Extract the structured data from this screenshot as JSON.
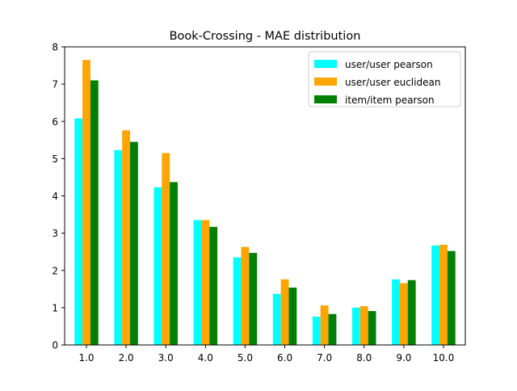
{
  "chart_data": {
    "type": "bar",
    "title": "Book-Crossing - MAE distribution",
    "xlabel": "",
    "ylabel": "",
    "categories": [
      "1.0",
      "2.0",
      "3.0",
      "4.0",
      "5.0",
      "6.0",
      "7.0",
      "8.0",
      "9.0",
      "10.0"
    ],
    "ylim": [
      0,
      8
    ],
    "yticks": [
      "0",
      "1",
      "2",
      "3",
      "4",
      "5",
      "6",
      "7",
      "8"
    ],
    "grid": false,
    "legend_position": "top-right",
    "series": [
      {
        "name": "user/user pearson",
        "color": "#00ffff",
        "values": [
          6.08,
          5.23,
          4.23,
          3.35,
          2.35,
          1.37,
          0.76,
          1.0,
          1.76,
          2.67
        ]
      },
      {
        "name": "user/user euclidean",
        "color": "#ffa500",
        "values": [
          7.65,
          5.76,
          5.15,
          3.35,
          2.63,
          1.76,
          1.06,
          1.04,
          1.66,
          2.69
        ]
      },
      {
        "name": "item/item pearson",
        "color": "#008000",
        "values": [
          7.1,
          5.45,
          4.37,
          3.17,
          2.47,
          1.54,
          0.83,
          0.91,
          1.74,
          2.52
        ]
      }
    ]
  }
}
